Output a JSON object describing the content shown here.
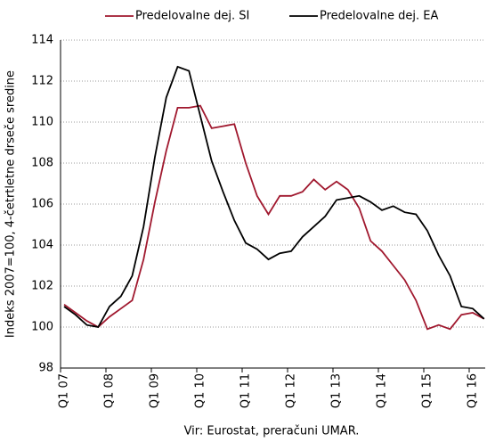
{
  "chart_data": {
    "type": "line",
    "y_label": "Indeks 2007=100, 4-četrtletne drseče sredine",
    "source": "Vir: Eurostat, preračuni UMAR.",
    "categories": [
      "Q1 07",
      null,
      null,
      null,
      "Q1 08",
      null,
      null,
      null,
      "Q1 09",
      null,
      null,
      null,
      "Q1 10",
      null,
      null,
      null,
      "Q1 11",
      null,
      null,
      null,
      "Q1 12",
      null,
      null,
      null,
      "Q1 13",
      null,
      null,
      null,
      "Q1 14",
      null,
      null,
      null,
      "Q1 15",
      null,
      null,
      null,
      "Q1 16",
      null
    ],
    "series": [
      {
        "name": "Predelovalne dej. SI",
        "color": "#a0182e",
        "values": [
          101.1,
          100.7,
          100.3,
          100.0,
          100.5,
          100.9,
          101.3,
          103.3,
          106.1,
          108.6,
          110.7,
          110.7,
          110.8,
          109.7,
          109.8,
          109.9,
          108.0,
          106.4,
          105.5,
          106.4,
          106.4,
          106.6,
          107.2,
          106.7,
          107.1,
          106.7,
          105.8,
          104.2,
          103.7,
          103.0,
          102.3,
          101.3,
          99.9,
          100.1,
          99.9,
          100.6,
          100.7,
          100.4
        ]
      },
      {
        "name": "Predelovalne dej. EA",
        "color": "#000000",
        "values": [
          101.0,
          100.6,
          100.1,
          100.0,
          101.0,
          101.5,
          102.5,
          104.9,
          108.3,
          111.2,
          112.7,
          112.5,
          110.3,
          108.1,
          106.6,
          105.2,
          104.1,
          103.8,
          103.3,
          103.6,
          103.7,
          104.4,
          104.9,
          105.4,
          106.2,
          106.3,
          106.4,
          106.1,
          105.7,
          105.9,
          105.6,
          105.5,
          104.7,
          103.5,
          102.5,
          101.0,
          100.9,
          100.4
        ]
      }
    ],
    "ylim": [
      98,
      114
    ],
    "yticks": [
      98,
      100,
      102,
      104,
      106,
      108,
      110,
      112,
      114
    ],
    "grid": true
  }
}
